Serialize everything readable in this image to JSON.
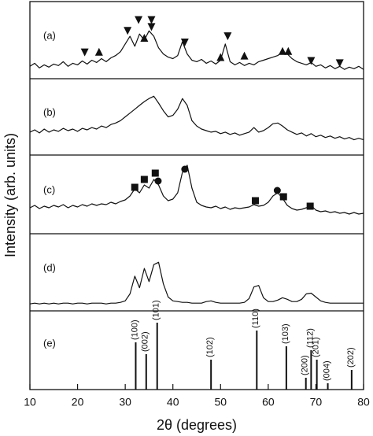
{
  "chart_data": [
    {
      "type": "line",
      "label": "(a)",
      "ylabel": "Intensity (arb. units)",
      "color": "#111111",
      "xlim": [
        10,
        80
      ],
      "ylim": [
        0,
        100
      ],
      "x": [
        10,
        11,
        12,
        13,
        14,
        15,
        16,
        17,
        18,
        19,
        20,
        21,
        22,
        23,
        24,
        25,
        26,
        27,
        28,
        29,
        30,
        31,
        32,
        33,
        34,
        35,
        36,
        37,
        38,
        39,
        40,
        41,
        42,
        43,
        44,
        45,
        46,
        47,
        48,
        49,
        50,
        51,
        52,
        53,
        54,
        55,
        56,
        57,
        58,
        59,
        60,
        61,
        62,
        63,
        64,
        65,
        66,
        67,
        68,
        69,
        70,
        71,
        72,
        73,
        74,
        75,
        76,
        77,
        78,
        79,
        80
      ],
      "values": [
        16,
        20,
        14,
        18,
        15,
        19,
        17,
        22,
        16,
        20,
        18,
        23,
        19,
        24,
        21,
        26,
        22,
        27,
        30,
        35,
        45,
        55,
        42,
        58,
        50,
        62,
        55,
        40,
        32,
        28,
        26,
        30,
        48,
        32,
        24,
        22,
        25,
        20,
        23,
        19,
        24,
        45,
        22,
        18,
        21,
        17,
        20,
        18,
        22,
        24,
        26,
        28,
        30,
        35,
        32,
        26,
        22,
        20,
        18,
        21,
        16,
        18,
        14,
        17,
        13,
        16,
        12,
        15,
        13,
        16,
        12
      ],
      "markers": [
        {
          "x": 21.5,
          "y": 34,
          "shape": "triangle-down"
        },
        {
          "x": 24.5,
          "y": 35,
          "shape": "triangle-up"
        },
        {
          "x": 30.5,
          "y": 62,
          "shape": "triangle-down"
        },
        {
          "x": 32.8,
          "y": 76,
          "shape": "triangle-down"
        },
        {
          "x": 34,
          "y": 53,
          "shape": "triangle-up"
        },
        {
          "x": 35.5,
          "y": 76,
          "shape": "triangle-down"
        },
        {
          "x": 35.5,
          "y": 67,
          "shape": "triangle-down"
        },
        {
          "x": 42.5,
          "y": 47,
          "shape": "triangle-down"
        },
        {
          "x": 50,
          "y": 28,
          "shape": "triangle-up"
        },
        {
          "x": 51.5,
          "y": 55,
          "shape": "triangle-down"
        },
        {
          "x": 55,
          "y": 30,
          "shape": "triangle-up"
        },
        {
          "x": 63,
          "y": 36,
          "shape": "triangle-up"
        },
        {
          "x": 64.2,
          "y": 36,
          "shape": "triangle-up"
        },
        {
          "x": 69,
          "y": 23,
          "shape": "triangle-down"
        },
        {
          "x": 75,
          "y": 20,
          "shape": "triangle-down"
        }
      ]
    },
    {
      "type": "line",
      "label": "(b)",
      "color": "#111111",
      "xlim": [
        10,
        80
      ],
      "ylim": [
        0,
        100
      ],
      "x": [
        10,
        11,
        12,
        13,
        14,
        15,
        16,
        17,
        18,
        19,
        20,
        21,
        22,
        23,
        24,
        25,
        26,
        27,
        28,
        29,
        30,
        31,
        32,
        33,
        34,
        35,
        36,
        37,
        38,
        39,
        40,
        41,
        42,
        43,
        44,
        45,
        46,
        47,
        48,
        49,
        50,
        51,
        52,
        53,
        54,
        55,
        56,
        57,
        58,
        59,
        60,
        61,
        62,
        63,
        64,
        65,
        66,
        67,
        68,
        69,
        70,
        71,
        72,
        73,
        74,
        75,
        76,
        77,
        78,
        79,
        80
      ],
      "values": [
        30,
        33,
        29,
        34,
        30,
        33,
        31,
        35,
        32,
        34,
        31,
        35,
        33,
        36,
        34,
        38,
        36,
        40,
        42,
        45,
        50,
        55,
        60,
        65,
        70,
        74,
        77,
        68,
        58,
        50,
        52,
        60,
        74,
        65,
        45,
        38,
        34,
        32,
        30,
        31,
        28,
        30,
        27,
        29,
        26,
        28,
        30,
        36,
        30,
        32,
        36,
        41,
        42,
        38,
        33,
        30,
        27,
        29,
        25,
        28,
        24,
        26,
        23,
        25,
        22,
        24,
        21,
        23,
        20,
        22,
        20
      ]
    },
    {
      "type": "line",
      "label": "(c)",
      "color": "#111111",
      "xlim": [
        10,
        80
      ],
      "ylim": [
        0,
        100
      ],
      "x": [
        10,
        11,
        12,
        13,
        14,
        15,
        16,
        17,
        18,
        19,
        20,
        21,
        22,
        23,
        24,
        25,
        26,
        27,
        28,
        29,
        30,
        31,
        32,
        33,
        34,
        35,
        36,
        37,
        38,
        39,
        40,
        41,
        42,
        43,
        44,
        45,
        46,
        47,
        48,
        49,
        50,
        51,
        52,
        53,
        54,
        55,
        56,
        57,
        58,
        59,
        60,
        61,
        62,
        63,
        64,
        65,
        66,
        67,
        68,
        69,
        70,
        71,
        72,
        73,
        74,
        75,
        76,
        77,
        78,
        79,
        80
      ],
      "values": [
        33,
        36,
        32,
        35,
        33,
        36,
        34,
        37,
        33,
        36,
        34,
        37,
        35,
        38,
        36,
        38,
        37,
        40,
        38,
        41,
        43,
        48,
        57,
        52,
        62,
        58,
        69,
        62,
        48,
        42,
        44,
        52,
        78,
        87,
        58,
        40,
        36,
        34,
        33,
        35,
        32,
        34,
        31,
        33,
        32,
        33,
        34,
        37,
        35,
        36,
        40,
        48,
        52,
        45,
        36,
        32,
        30,
        31,
        33,
        36,
        30,
        28,
        29,
        27,
        28,
        26,
        27,
        25,
        27,
        25,
        26
      ],
      "markers": [
        {
          "x": 32,
          "y": 59,
          "shape": "square"
        },
        {
          "x": 34,
          "y": 69,
          "shape": "square"
        },
        {
          "x": 36.3,
          "y": 77,
          "shape": "square"
        },
        {
          "x": 36.9,
          "y": 67,
          "shape": "circle"
        },
        {
          "x": 42.5,
          "y": 82,
          "shape": "circle"
        },
        {
          "x": 57.3,
          "y": 42,
          "shape": "square"
        },
        {
          "x": 61.9,
          "y": 55,
          "shape": "circle"
        },
        {
          "x": 63.2,
          "y": 47,
          "shape": "square"
        },
        {
          "x": 68.8,
          "y": 35,
          "shape": "square"
        }
      ]
    },
    {
      "type": "line",
      "label": "(d)",
      "color": "#111111",
      "xlim": [
        10,
        80
      ],
      "ylim": [
        0,
        100
      ],
      "x": [
        10,
        11,
        12,
        13,
        14,
        15,
        16,
        17,
        18,
        19,
        20,
        21,
        22,
        23,
        24,
        25,
        26,
        27,
        28,
        29,
        30,
        31,
        32,
        33,
        34,
        35,
        36,
        37,
        38,
        39,
        40,
        41,
        42,
        43,
        44,
        45,
        46,
        47,
        48,
        49,
        50,
        51,
        52,
        53,
        54,
        55,
        56,
        57,
        58,
        59,
        60,
        61,
        62,
        63,
        64,
        65,
        66,
        67,
        68,
        69,
        70,
        71,
        72,
        73,
        74,
        75,
        76,
        77,
        78,
        79,
        80
      ],
      "values": [
        9,
        10,
        9,
        10,
        9,
        10,
        9,
        10,
        10,
        9,
        10,
        10,
        9,
        10,
        10,
        10,
        9,
        10,
        10,
        11,
        13,
        22,
        45,
        30,
        55,
        38,
        60,
        63,
        35,
        18,
        13,
        12,
        11,
        11,
        10,
        10,
        10,
        12,
        13,
        11,
        10,
        10,
        10,
        10,
        10,
        11,
        16,
        31,
        33,
        17,
        12,
        12,
        14,
        17,
        15,
        12,
        12,
        15,
        22,
        23,
        18,
        13,
        11,
        10,
        10,
        10,
        10,
        10,
        10,
        10,
        10
      ]
    },
    {
      "type": "stick",
      "label": "(e)",
      "color": "#111111",
      "xlim": [
        10,
        80
      ],
      "ylim": [
        0,
        100
      ],
      "xticks": [
        10,
        20,
        30,
        40,
        50,
        60,
        70,
        80
      ],
      "xlabel": "2θ (degrees)",
      "x": [
        32.2,
        34.4,
        36.7,
        48.0,
        57.6,
        63.8,
        67.9,
        69.0,
        70.2,
        72.5,
        77.5
      ],
      "values": [
        60,
        45,
        85,
        38,
        75,
        55,
        15,
        50,
        38,
        8,
        25
      ],
      "labels": [
        "(100)",
        "(002)",
        "(101)",
        "(102)",
        "(110)",
        "(103)",
        "(200)",
        "(112)",
        "(201)",
        "(004)",
        "(202)"
      ]
    }
  ]
}
